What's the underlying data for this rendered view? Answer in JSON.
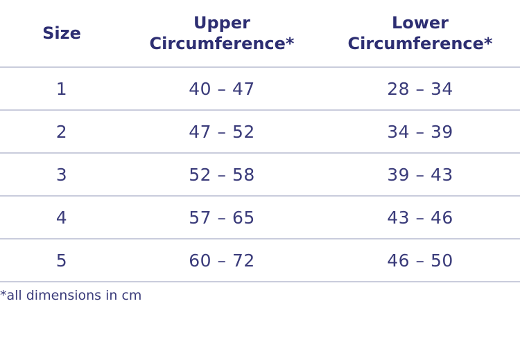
{
  "table": {
    "headers": [
      {
        "lines": [
          "Size"
        ]
      },
      {
        "lines": [
          "Upper",
          "Circumference*"
        ]
      },
      {
        "lines": [
          "Lower",
          "Circumference*"
        ]
      }
    ],
    "rows": [
      {
        "size": "1",
        "upper": "40 – 47",
        "lower": "28 – 34"
      },
      {
        "size": "2",
        "upper": "47 – 52",
        "lower": "34 – 39"
      },
      {
        "size": "3",
        "upper": "52 – 58",
        "lower": "39 – 43"
      },
      {
        "size": "4",
        "upper": "57 – 65",
        "lower": "43 – 46"
      },
      {
        "size": "5",
        "upper": "60 – 72",
        "lower": "46 – 50"
      }
    ]
  },
  "footnote": "*all dimensions in cm",
  "colors": {
    "text": "#2d2e72",
    "rule": "#c9ccdc"
  }
}
